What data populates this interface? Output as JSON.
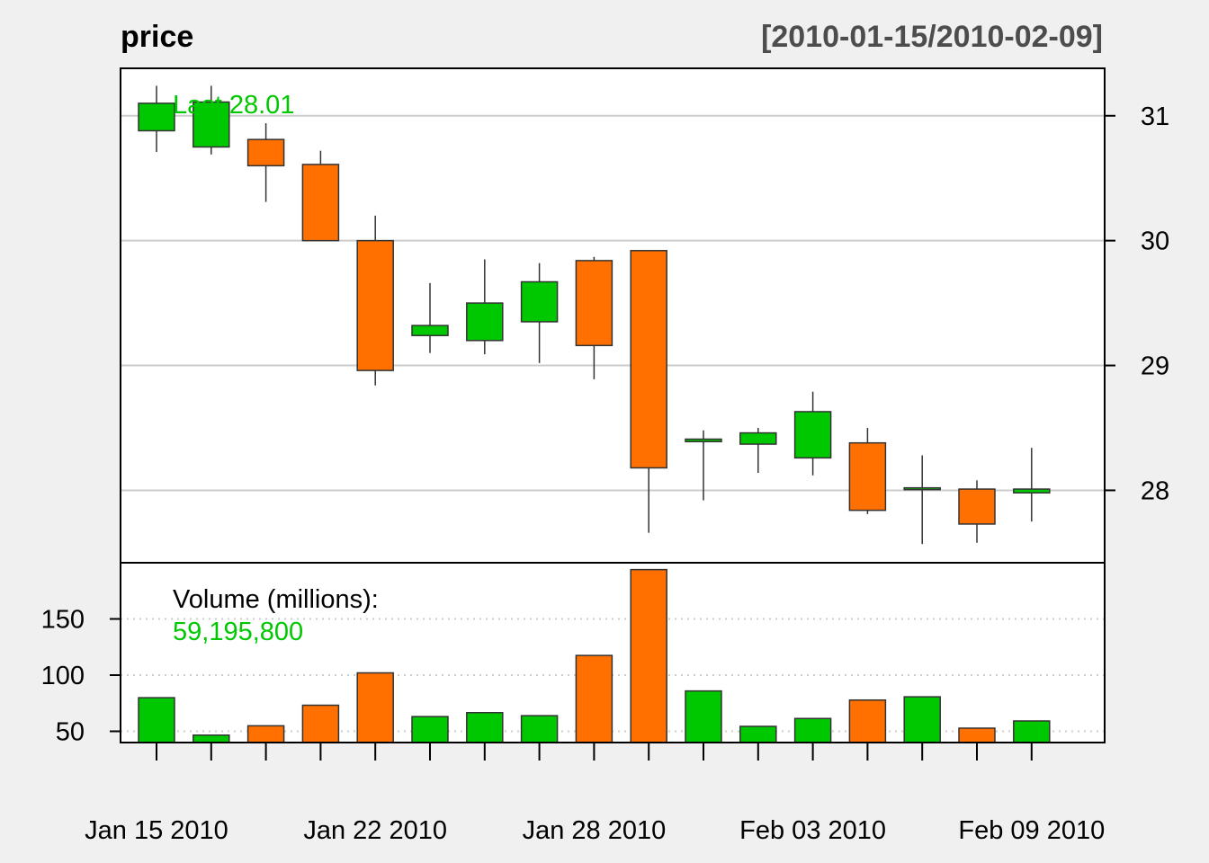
{
  "chart_data": {
    "type": "candlestick",
    "title": "price",
    "date_range": "[2010-01-15/2010-02-09]",
    "last_label": "Last 28.01",
    "volume_label": "Volume (millions):",
    "last_volume": "59,195,800",
    "up_color": "#00c800",
    "down_color": "#ff7000",
    "price_ylim": [
      27.42,
      31.38
    ],
    "price_ticks": [
      28,
      29,
      30,
      31
    ],
    "volume_ylim": [
      40,
      200
    ],
    "volume_ticks": [
      50,
      100,
      150
    ],
    "x_tick_labels": [
      "Jan 15 2010",
      "Jan 22 2010",
      "Jan 28 2010",
      "Feb 03 2010",
      "Feb 09 2010"
    ],
    "x_label_positions": [
      0,
      4,
      8,
      12,
      16
    ],
    "x_minor_tick_count": 17,
    "grid": true,
    "candles": [
      {
        "date": "2010-01-15",
        "open": 30.88,
        "high": 31.24,
        "low": 30.71,
        "close": 31.1,
        "volume": 79.9
      },
      {
        "date": "2010-01-19",
        "open": 30.75,
        "high": 31.24,
        "low": 30.69,
        "close": 31.11,
        "volume": 46.6
      },
      {
        "date": "2010-01-20",
        "open": 30.81,
        "high": 30.94,
        "low": 30.31,
        "close": 30.6,
        "volume": 54.9
      },
      {
        "date": "2010-01-21",
        "open": 30.61,
        "high": 30.72,
        "low": 30.0,
        "close": 30.0,
        "volume": 73.2
      },
      {
        "date": "2010-01-22",
        "open": 30.0,
        "high": 30.2,
        "low": 28.84,
        "close": 28.96,
        "volume": 102.0
      },
      {
        "date": "2010-01-25",
        "open": 29.24,
        "high": 29.66,
        "low": 29.1,
        "close": 29.32,
        "volume": 63.1
      },
      {
        "date": "2010-01-26",
        "open": 29.2,
        "high": 29.85,
        "low": 29.09,
        "close": 29.5,
        "volume": 66.6
      },
      {
        "date": "2010-01-27",
        "open": 29.35,
        "high": 29.82,
        "low": 29.02,
        "close": 29.67,
        "volume": 63.9
      },
      {
        "date": "2010-01-28",
        "open": 29.84,
        "high": 29.87,
        "low": 28.89,
        "close": 29.16,
        "volume": 117.5
      },
      {
        "date": "2010-01-29",
        "open": 29.92,
        "high": 29.92,
        "low": 27.66,
        "close": 28.18,
        "volume": 193.9
      },
      {
        "date": "2010-02-01",
        "open": 28.39,
        "high": 28.48,
        "low": 27.92,
        "close": 28.41,
        "volume": 85.9
      },
      {
        "date": "2010-02-02",
        "open": 28.37,
        "high": 28.5,
        "low": 28.14,
        "close": 28.46,
        "volume": 54.4
      },
      {
        "date": "2010-02-03",
        "open": 28.26,
        "high": 28.79,
        "low": 28.12,
        "close": 28.63,
        "volume": 61.4
      },
      {
        "date": "2010-02-04",
        "open": 28.38,
        "high": 28.5,
        "low": 27.81,
        "close": 27.84,
        "volume": 77.8
      },
      {
        "date": "2010-02-05",
        "open": 28.02,
        "high": 28.28,
        "low": 27.57,
        "close": 28.02,
        "volume": 80.7
      },
      {
        "date": "2010-02-08",
        "open": 28.01,
        "high": 28.08,
        "low": 27.58,
        "close": 27.73,
        "volume": 52.8
      },
      {
        "date": "2010-02-09",
        "open": 27.98,
        "high": 28.34,
        "low": 27.75,
        "close": 28.01,
        "volume": 59.2
      }
    ]
  }
}
